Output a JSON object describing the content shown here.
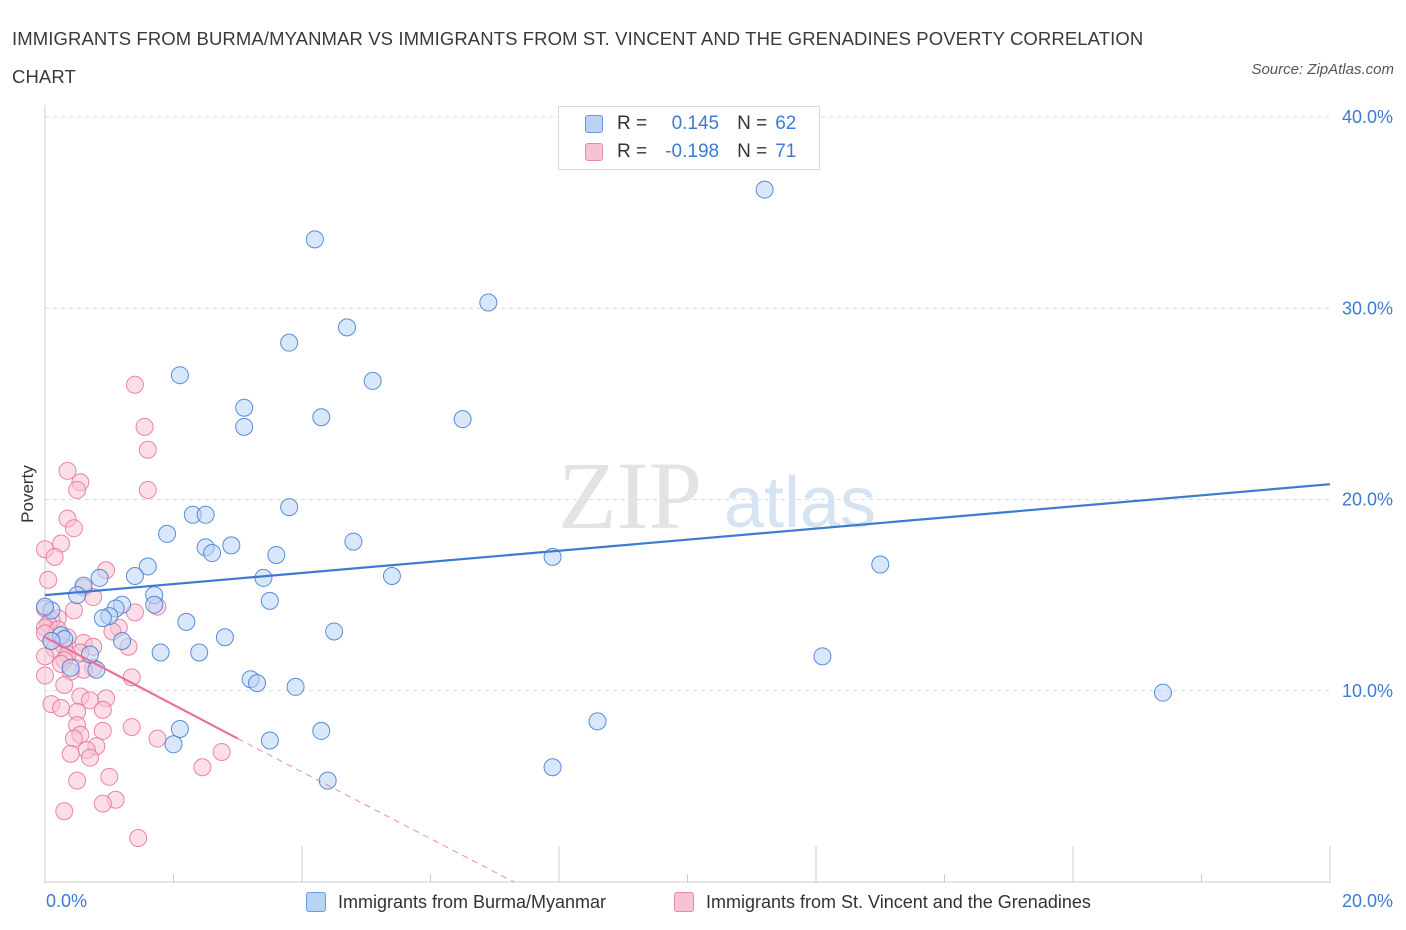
{
  "title": "IMMIGRANTS FROM BURMA/MYANMAR VS IMMIGRANTS FROM ST. VINCENT AND THE GRENADINES POVERTY CORRELATION CHART",
  "source": "Source: ZipAtlas.com",
  "watermark": {
    "zip": "ZIP",
    "atlas": "atlas"
  },
  "colors": {
    "blue": "#3d7bd1",
    "blue_fill": "#b9d3f5",
    "pink": "#e8719a",
    "pink_fill": "#f7c3d3",
    "grid": "#dcdcdc",
    "axis_text": "#3d7bd1"
  },
  "legend": {
    "r_label": "R =",
    "n_label": "N =",
    "blue": {
      "r": "0.145",
      "n": "62"
    },
    "pink": {
      "r": "-0.198",
      "n": "71"
    }
  },
  "chart_data": {
    "type": "scatter",
    "ylabel": "Poverty",
    "xlim": [
      0,
      20
    ],
    "ylim": [
      0,
      40
    ],
    "x_tick_labels": {
      "min": "0.0%",
      "max": "20.0%"
    },
    "y_ticks": [
      {
        "value": 10,
        "label": "10.0%"
      },
      {
        "value": 20,
        "label": "20.0%"
      },
      {
        "value": 30,
        "label": "30.0%"
      },
      {
        "value": 40,
        "label": "40.0%"
      }
    ],
    "series": [
      {
        "name": "Immigrants from Burma/Myanmar",
        "color": "blue",
        "trend": {
          "x0": 0,
          "y0": 15.0,
          "x1": 20,
          "y1": 20.8,
          "dashed_to": null
        },
        "points": [
          [
            11.2,
            36.2
          ],
          [
            4.2,
            33.6
          ],
          [
            6.9,
            30.3
          ],
          [
            3.8,
            28.2
          ],
          [
            4.7,
            29.0
          ],
          [
            2.1,
            26.5
          ],
          [
            5.1,
            26.2
          ],
          [
            4.3,
            24.3
          ],
          [
            3.1,
            24.8
          ],
          [
            3.1,
            23.8
          ],
          [
            6.5,
            24.2
          ],
          [
            1.9,
            18.2
          ],
          [
            2.3,
            19.2
          ],
          [
            2.5,
            19.2
          ],
          [
            3.8,
            19.6
          ],
          [
            2.5,
            17.5
          ],
          [
            2.6,
            17.2
          ],
          [
            2.9,
            17.6
          ],
          [
            3.6,
            17.1
          ],
          [
            4.8,
            17.8
          ],
          [
            7.9,
            17.0
          ],
          [
            13.0,
            16.6
          ],
          [
            1.6,
            16.5
          ],
          [
            1.4,
            16.0
          ],
          [
            0.85,
            15.9
          ],
          [
            3.4,
            15.9
          ],
          [
            5.4,
            16.0
          ],
          [
            0.6,
            15.5
          ],
          [
            0.5,
            15.0
          ],
          [
            1.7,
            15.0
          ],
          [
            1.2,
            14.5
          ],
          [
            1.7,
            14.5
          ],
          [
            3.5,
            14.7
          ],
          [
            1.1,
            14.3
          ],
          [
            0.1,
            14.2
          ],
          [
            1.0,
            13.9
          ],
          [
            0.9,
            13.8
          ],
          [
            2.2,
            13.6
          ],
          [
            4.5,
            13.1
          ],
          [
            0.25,
            12.9
          ],
          [
            0.3,
            12.7
          ],
          [
            0.1,
            12.6
          ],
          [
            1.2,
            12.6
          ],
          [
            2.8,
            12.8
          ],
          [
            1.8,
            12.0
          ],
          [
            2.4,
            12.0
          ],
          [
            0.7,
            11.9
          ],
          [
            12.1,
            11.8
          ],
          [
            0.4,
            11.2
          ],
          [
            0.8,
            11.1
          ],
          [
            3.2,
            10.6
          ],
          [
            3.3,
            10.4
          ],
          [
            3.9,
            10.2
          ],
          [
            17.4,
            9.9
          ],
          [
            8.6,
            8.4
          ],
          [
            2.1,
            8.0
          ],
          [
            4.3,
            7.9
          ],
          [
            3.5,
            7.4
          ],
          [
            2.0,
            7.2
          ],
          [
            7.9,
            6.0
          ],
          [
            4.4,
            5.3
          ],
          [
            0.0,
            14.4
          ]
        ]
      },
      {
        "name": "Immigrants from St. Vincent and the Grenadines",
        "color": "pink",
        "trend": {
          "x0": 0,
          "y0": 12.8,
          "x1": 3.0,
          "y1": 7.5,
          "dashed_to": [
            7.3,
            0
          ]
        },
        "points": [
          [
            1.4,
            26.0
          ],
          [
            1.55,
            23.8
          ],
          [
            1.6,
            22.6
          ],
          [
            0.35,
            21.5
          ],
          [
            0.55,
            20.9
          ],
          [
            0.5,
            20.5
          ],
          [
            1.6,
            20.5
          ],
          [
            0.35,
            19.0
          ],
          [
            0.45,
            18.5
          ],
          [
            0.25,
            17.7
          ],
          [
            0.0,
            17.4
          ],
          [
            0.15,
            17.0
          ],
          [
            0.95,
            16.3
          ],
          [
            0.05,
            15.8
          ],
          [
            0.6,
            15.4
          ],
          [
            0.75,
            14.9
          ],
          [
            1.75,
            14.4
          ],
          [
            0.0,
            14.3
          ],
          [
            0.45,
            14.2
          ],
          [
            1.4,
            14.1
          ],
          [
            0.2,
            13.8
          ],
          [
            0.1,
            13.7
          ],
          [
            0.05,
            13.5
          ],
          [
            0.0,
            13.3
          ],
          [
            1.15,
            13.3
          ],
          [
            0.2,
            13.2
          ],
          [
            1.05,
            13.1
          ],
          [
            0.0,
            13.0
          ],
          [
            0.35,
            12.8
          ],
          [
            0.1,
            12.6
          ],
          [
            0.6,
            12.5
          ],
          [
            0.3,
            12.3
          ],
          [
            0.75,
            12.3
          ],
          [
            1.3,
            12.3
          ],
          [
            0.15,
            12.2
          ],
          [
            0.55,
            12.0
          ],
          [
            0.35,
            11.9
          ],
          [
            0.0,
            11.8
          ],
          [
            0.3,
            11.6
          ],
          [
            0.25,
            11.4
          ],
          [
            0.75,
            11.2
          ],
          [
            0.6,
            11.1
          ],
          [
            0.4,
            11.0
          ],
          [
            0.0,
            10.8
          ],
          [
            1.35,
            10.7
          ],
          [
            0.3,
            10.3
          ],
          [
            0.55,
            9.7
          ],
          [
            0.95,
            9.6
          ],
          [
            0.7,
            9.5
          ],
          [
            0.1,
            9.3
          ],
          [
            0.25,
            9.1
          ],
          [
            0.9,
            9.0
          ],
          [
            0.5,
            8.9
          ],
          [
            0.5,
            8.2
          ],
          [
            1.35,
            8.1
          ],
          [
            0.9,
            7.9
          ],
          [
            0.55,
            7.7
          ],
          [
            0.45,
            7.5
          ],
          [
            1.75,
            7.5
          ],
          [
            0.8,
            7.1
          ],
          [
            0.65,
            6.9
          ],
          [
            2.75,
            6.8
          ],
          [
            0.4,
            6.7
          ],
          [
            0.7,
            6.5
          ],
          [
            2.45,
            6.0
          ],
          [
            1.0,
            5.5
          ],
          [
            0.5,
            5.3
          ],
          [
            1.1,
            4.3
          ],
          [
            0.9,
            4.1
          ],
          [
            0.3,
            3.7
          ],
          [
            1.45,
            2.3
          ]
        ]
      }
    ]
  }
}
